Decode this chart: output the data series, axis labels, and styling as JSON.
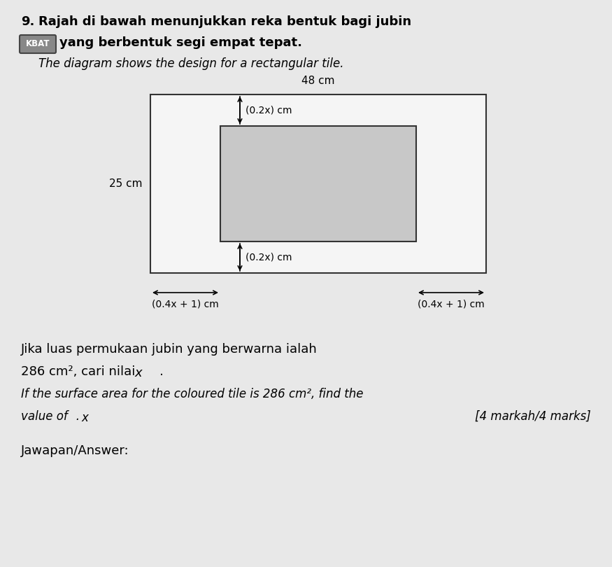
{
  "page_bg": "#e8e8e8",
  "title_num": "9.",
  "title_line1": "Rajah di bawah menunjukkan reka bentuk bagi jubin",
  "title_kbat": "KBAT",
  "title_line2": "yang berbentuk segi empat tepat.",
  "title_line3_italic": "The diagram shows the design for a rectangular tile.",
  "outer_rect_facecolor": "#f5f5f5",
  "inner_rect_facecolor": "#c8c8c8",
  "dim_top": "48 cm",
  "dim_left": "25 cm",
  "dim_02x_top": "(0.2x) cm",
  "dim_02x_bot": "(0.2x) cm",
  "dim_04x_left": "(0.4x + 1) cm",
  "dim_04x_right": "(0.4x + 1) cm",
  "q_line1": "Jika luas permukaan jubin yang berwarna ialah",
  "q_line2a": "286 cm",
  "q_line2b": "2",
  "q_line2c": ", cari nilai ",
  "q_line2d": "x",
  "q_line2e": ".",
  "q_line3": "If the surface area for the coloured tile is 286 cm",
  "q_line3b": "2",
  "q_line3c": ", find the",
  "q_line4a": "value of ",
  "q_line4b": "x",
  "q_line4c": ".",
  "marks": "[4 markah/4 marks]",
  "answer_label": "Jawapan/Answer:"
}
